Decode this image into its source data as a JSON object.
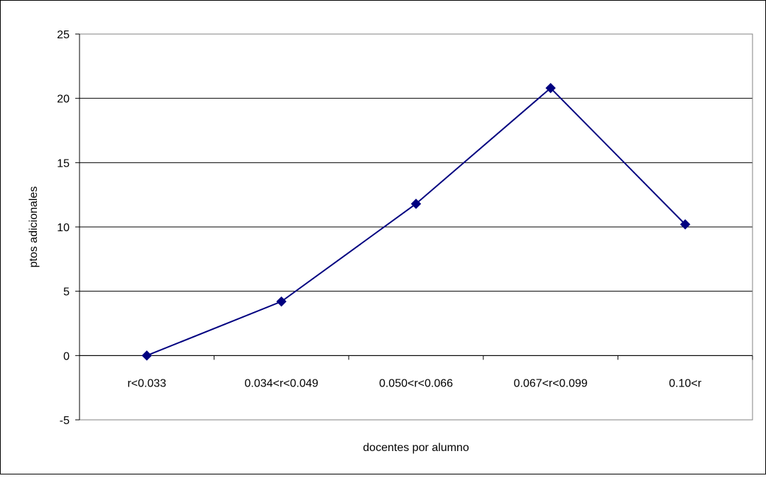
{
  "chart_data": {
    "type": "line",
    "title": "",
    "xlabel": "docentes por alumno",
    "ylabel": "ptos adicionales",
    "categories": [
      "r<0.033",
      "0.034<r<0.049",
      "0.050<r<0.066",
      "0.067<r<0.099",
      "0.10<r"
    ],
    "series": [
      {
        "values": [
          0,
          4.2,
          11.8,
          20.8,
          10.2
        ]
      }
    ],
    "ylim": [
      -5,
      25
    ],
    "yticks": [
      -5,
      0,
      5,
      10,
      15,
      20,
      25
    ],
    "grid": "horizontal",
    "legend": "none",
    "marker": "diamond",
    "colors": {
      "line": "#000080",
      "grid": "#000000",
      "frame": "#000000"
    }
  }
}
